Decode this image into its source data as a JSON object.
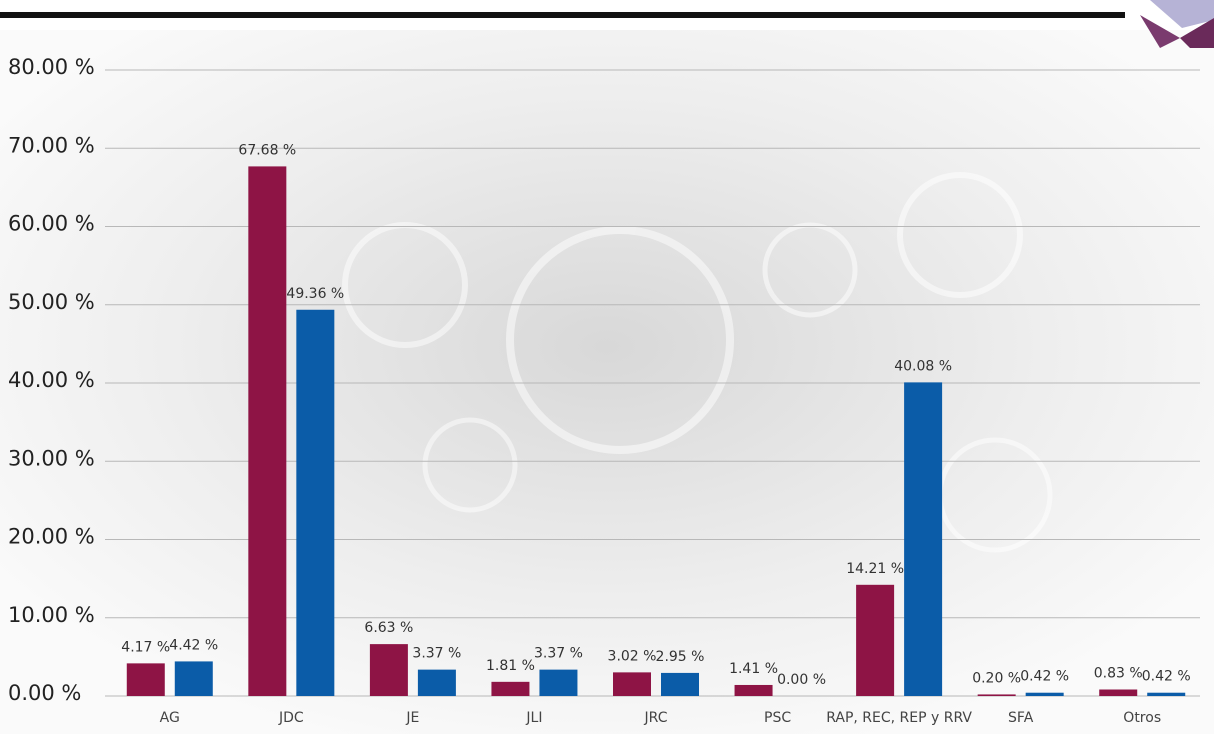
{
  "chart_data": {
    "type": "bar",
    "categories": [
      "AG",
      "JDC",
      "JE",
      "JLI",
      "JRC",
      "PSC",
      "RAP, REC, REP y RRV",
      "SFA",
      "Otros"
    ],
    "series": [
      {
        "color": "#8e1445",
        "values": [
          4.17,
          67.68,
          6.63,
          1.81,
          3.02,
          1.41,
          14.21,
          0.2,
          0.83
        ],
        "value_labels": [
          "4.17 %",
          "67.68 %",
          "6.63 %",
          "1.81 %",
          "3.02 %",
          "1.41 %",
          "14.21 %",
          "0.20 %",
          "0.83 %"
        ]
      },
      {
        "color": "#0b5ca8",
        "values": [
          4.42,
          49.36,
          3.37,
          3.37,
          2.95,
          0.0,
          40.08,
          0.42,
          0.42
        ],
        "value_labels": [
          "4.42 %",
          "49.36 %",
          "3.37 %",
          "3.37 %",
          "2.95 %",
          "0.00 %",
          "40.08 %",
          "0.42 %",
          "0.42 %"
        ]
      }
    ],
    "ylim": [
      0,
      80
    ],
    "yticks": [
      {
        "value": 0,
        "label": "0.00 %"
      },
      {
        "value": 10,
        "label": "10.00 %"
      },
      {
        "value": 20,
        "label": "20.00 %"
      },
      {
        "value": 30,
        "label": "30.00 %"
      },
      {
        "value": 40,
        "label": "40.00 %"
      },
      {
        "value": 50,
        "label": "50.00 %"
      },
      {
        "value": 60,
        "label": "60.00 %"
      },
      {
        "value": 70,
        "label": "70.00 %"
      },
      {
        "value": 80,
        "label": "80.00 %"
      }
    ],
    "grid": true
  }
}
